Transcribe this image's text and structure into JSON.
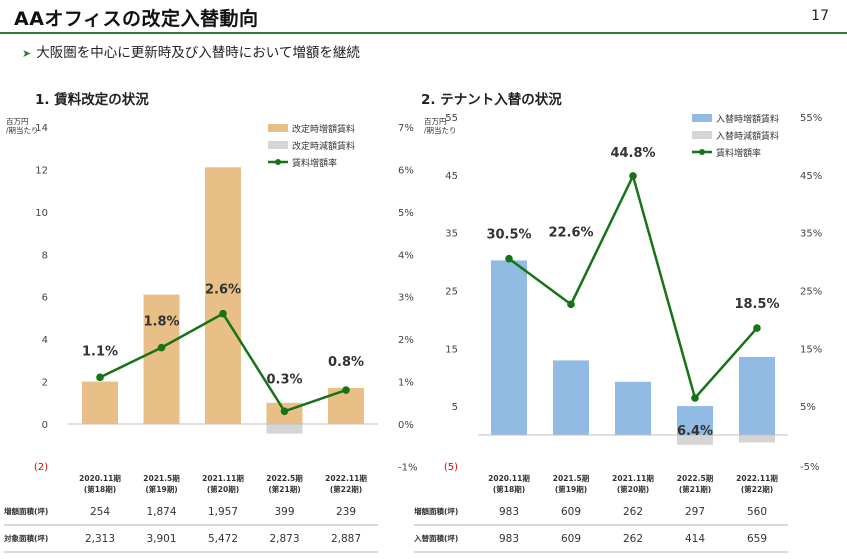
{
  "page": {
    "title": "AAオフィスの改定入替動向",
    "number": "17",
    "subtitle": "大阪圏を中心に更新時及び入替時において増額を継続"
  },
  "colors": {
    "accent_green": "#2e7d32",
    "line_green": "#177317",
    "bar_orange": "#e8bf86",
    "bar_blue": "#92bbe3",
    "bar_gray": "#d5d5d5",
    "negative_red": "#e00000"
  },
  "chart_data": [
    {
      "type": "bar",
      "title": "1. 賃料改定の状況",
      "ylabel": "百万円/期当たり",
      "unit_line1": "百万円",
      "unit_line2": "/期当たり",
      "ylim": [
        -2,
        14
      ],
      "y2lim": [
        -1,
        7
      ],
      "left_ticks": [
        "14",
        "12",
        "10",
        "8",
        "6",
        "4",
        "2",
        "0"
      ],
      "left_negative_tick": "(2)",
      "right_ticks": [
        "7%",
        "6%",
        "5%",
        "4%",
        "3%",
        "2%",
        "1%",
        "0%",
        "-1%"
      ],
      "categories": [
        {
          "period": "2020.11期",
          "term": "(第18期)"
        },
        {
          "period": "2021.5期",
          "term": "(第19期)"
        },
        {
          "period": "2021.11期",
          "term": "(第20期)"
        },
        {
          "period": "2022.5期",
          "term": "(第21期)"
        },
        {
          "period": "2022.11期",
          "term": "(第22期)"
        }
      ],
      "series": [
        {
          "name": "改定時増額賃料",
          "kind": "bar",
          "color": "#e8bf86",
          "values": [
            2.0,
            6.1,
            12.1,
            1.0,
            1.7
          ]
        },
        {
          "name": "改定時減額賃料",
          "kind": "bar",
          "color": "#d5d5d5",
          "values": [
            0,
            0,
            0,
            -0.45,
            0
          ]
        },
        {
          "name": "賃料増額率",
          "kind": "line",
          "color": "#177317",
          "axis": "right",
          "values": [
            1.1,
            1.8,
            2.6,
            0.3,
            0.8
          ],
          "labels": [
            "1.1%",
            "1.8%",
            "2.6%",
            "0.3%",
            "0.8%"
          ]
        }
      ],
      "table": [
        {
          "label": "増額面積(坪)",
          "values": [
            "254",
            "1,874",
            "1,957",
            "399",
            "239"
          ]
        },
        {
          "label": "対象面積(坪)",
          "values": [
            "2,313",
            "3,901",
            "5,472",
            "2,873",
            "2,887"
          ]
        }
      ]
    },
    {
      "type": "bar",
      "title": "2. テナント入替の状況",
      "ylabel": "百万円/期当たり",
      "unit_line1": "百万円",
      "unit_line2": "/期当たり",
      "ylim": [
        -5,
        55
      ],
      "y2lim": [
        -5,
        55
      ],
      "left_ticks": [
        "55",
        "45",
        "35",
        "25",
        "15",
        "5"
      ],
      "left_negative_tick": "(5)",
      "right_ticks": [
        "55%",
        "45%",
        "35%",
        "25%",
        "15%",
        "5%",
        "-5%"
      ],
      "categories": [
        {
          "period": "2020.11期",
          "term": "(第18期)"
        },
        {
          "period": "2021.5期",
          "term": "(第19期)"
        },
        {
          "period": "2021.11期",
          "term": "(第20期)"
        },
        {
          "period": "2022.5期",
          "term": "(第21期)"
        },
        {
          "period": "2022.11期",
          "term": "(第22期)"
        }
      ],
      "series": [
        {
          "name": "入替時増額賃料",
          "kind": "bar",
          "color": "#92bbe3",
          "values": [
            30.2,
            12.9,
            9.2,
            5.0,
            13.5
          ]
        },
        {
          "name": "入替時減額賃料",
          "kind": "bar",
          "color": "#d5d5d5",
          "values": [
            0,
            0,
            0,
            -1.7,
            -1.3
          ]
        },
        {
          "name": "賃料増額率",
          "kind": "line",
          "color": "#177317",
          "axis": "right",
          "values": [
            30.5,
            22.6,
            44.8,
            6.4,
            18.5
          ],
          "labels": [
            "30.5%",
            "22.6%",
            "44.8%",
            "6.4%",
            "18.5%"
          ]
        }
      ],
      "table": [
        {
          "label": "増額面積(坪)",
          "values": [
            "983",
            "609",
            "262",
            "297",
            "560"
          ]
        },
        {
          "label": "入替面積(坪)",
          "values": [
            "983",
            "609",
            "262",
            "414",
            "659"
          ]
        }
      ]
    }
  ]
}
